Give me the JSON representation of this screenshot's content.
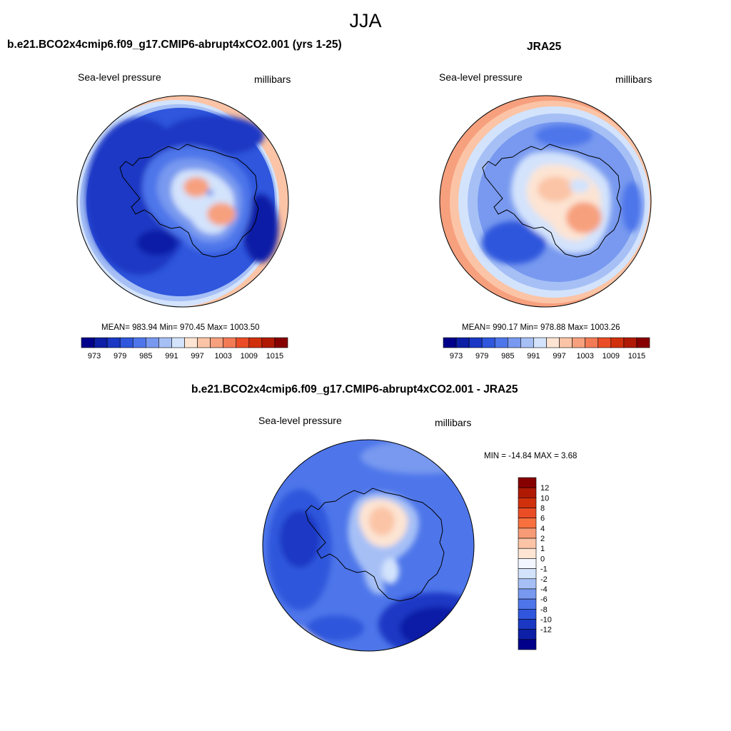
{
  "figure": {
    "season": "JJA"
  },
  "chart_data": [
    {
      "type": "heatmap",
      "title": "b.e21.BCO2x4cmip6.f09_g17.CMIP6-abrupt4xCO2.001 (yrs 1-25)",
      "left_label": "Sea-level pressure",
      "right_label": "millibars",
      "stats": "MEAN= 983.94  Min= 970.45  Max= 1003.50",
      "colorbar_levels": [
        973,
        976,
        979,
        982,
        985,
        988,
        991,
        994,
        997,
        1000,
        1003,
        1006,
        1009,
        1012,
        1015
      ],
      "colorbar_ticks": [
        "973",
        "979",
        "985",
        "991",
        "997",
        "1003",
        "1009",
        "1015"
      ]
    },
    {
      "type": "heatmap",
      "title": "JRA25",
      "left_label": "Sea-level pressure",
      "right_label": "millibars",
      "stats": "MEAN= 990.17  Min= 978.88  Max= 1003.26",
      "colorbar_levels": [
        973,
        976,
        979,
        982,
        985,
        988,
        991,
        994,
        997,
        1000,
        1003,
        1006,
        1009,
        1012,
        1015
      ],
      "colorbar_ticks": [
        "973",
        "979",
        "985",
        "991",
        "997",
        "1003",
        "1009",
        "1015"
      ]
    },
    {
      "type": "heatmap",
      "title": "b.e21.BCO2x4cmip6.f09_g17.CMIP6-abrupt4xCO2.001 - JRA25",
      "left_label": "Sea-level pressure",
      "right_label": "millibars",
      "stats": "MIN = -14.84 MAX =   3.68",
      "colorbar_ticks": [
        "12",
        "10",
        "8",
        "6",
        "4",
        "2",
        "1",
        "0",
        "-1",
        "-2",
        "-4",
        "-6",
        "-8",
        "-10",
        "-12"
      ]
    }
  ],
  "colors": {
    "abs_scale": [
      "#00008b",
      "#0d1fa6",
      "#1a38c4",
      "#2f56dc",
      "#4e76ea",
      "#7899ef",
      "#a6c0f6",
      "#d3e3fc",
      "#fde4d3",
      "#fbc4a6",
      "#f7a07e",
      "#f27a55",
      "#ea4d26",
      "#d1300d",
      "#b01a05",
      "#870000"
    ],
    "diff_scale": [
      "#870000",
      "#b01a05",
      "#d1300d",
      "#ea4d26",
      "#f7703e",
      "#f79b76",
      "#fbc4a6",
      "#fde4d3",
      "#f2f6fe",
      "#d3e3fc",
      "#a6c0f6",
      "#7899ef",
      "#4e76ea",
      "#2f56dc",
      "#1a38c4",
      "#0d1fa6",
      "#00008b"
    ],
    "outline": "#000000"
  }
}
